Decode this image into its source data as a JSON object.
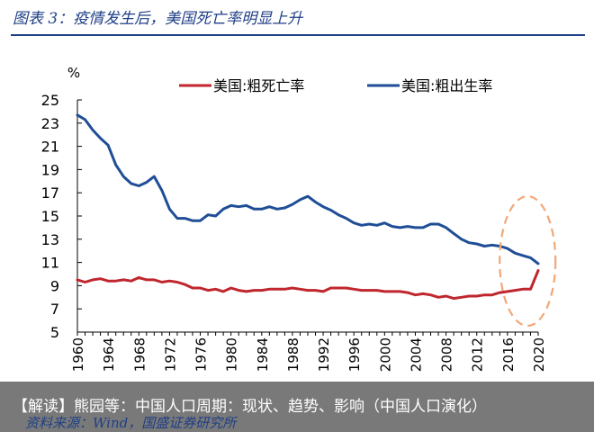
{
  "figure": {
    "title": "图表 3：疫情发生后，美国死亡率明显上升",
    "caption": "【解读】熊园等：中国人口周期：现状、趋势、影响（中国人口演化）",
    "source": "资料来源：Wind，国盛证券研究所"
  },
  "colors": {
    "accent": "#1f3f86",
    "death_series": "#c0262d",
    "birth_series": "#1f4e96",
    "highlight_ellipse": "#f0a878"
  },
  "chart_data": {
    "type": "line",
    "title": "",
    "xlabel": "",
    "ylabel": "%",
    "ylim": [
      5,
      25
    ],
    "yticks": [
      5,
      7,
      9,
      11,
      13,
      15,
      17,
      19,
      21,
      23,
      25
    ],
    "xlim": [
      1960,
      2020
    ],
    "xticks": [
      "1960",
      "1964",
      "1968",
      "1972",
      "1976",
      "1980",
      "1984",
      "1988",
      "1992",
      "1996",
      "2000",
      "2004",
      "2008",
      "2012",
      "2016",
      "2020"
    ],
    "legend": "top",
    "grid": false,
    "annotations": [
      {
        "kind": "dashed-ellipse",
        "around_years": [
          2017,
          2020
        ]
      }
    ],
    "x": [
      1960,
      1961,
      1962,
      1963,
      1964,
      1965,
      1966,
      1967,
      1968,
      1969,
      1970,
      1971,
      1972,
      1973,
      1974,
      1975,
      1976,
      1977,
      1978,
      1979,
      1980,
      1981,
      1982,
      1983,
      1984,
      1985,
      1986,
      1987,
      1988,
      1989,
      1990,
      1991,
      1992,
      1993,
      1994,
      1995,
      1996,
      1997,
      1998,
      1999,
      2000,
      2001,
      2002,
      2003,
      2004,
      2005,
      2006,
      2007,
      2008,
      2009,
      2010,
      2011,
      2012,
      2013,
      2014,
      2015,
      2016,
      2017,
      2018,
      2019,
      2020
    ],
    "series": [
      {
        "name": "美国:粗死亡率",
        "values": [
          9.5,
          9.3,
          9.5,
          9.6,
          9.4,
          9.4,
          9.5,
          9.4,
          9.7,
          9.5,
          9.5,
          9.3,
          9.4,
          9.3,
          9.1,
          8.8,
          8.8,
          8.6,
          8.7,
          8.5,
          8.8,
          8.6,
          8.5,
          8.6,
          8.6,
          8.7,
          8.7,
          8.7,
          8.8,
          8.7,
          8.6,
          8.6,
          8.5,
          8.8,
          8.8,
          8.8,
          8.7,
          8.6,
          8.6,
          8.6,
          8.5,
          8.5,
          8.5,
          8.4,
          8.2,
          8.3,
          8.2,
          8.0,
          8.1,
          7.9,
          8.0,
          8.1,
          8.1,
          8.2,
          8.2,
          8.4,
          8.5,
          8.6,
          8.7,
          8.7,
          10.3
        ]
      },
      {
        "name": "美国:粗出生率",
        "values": [
          23.7,
          23.3,
          22.4,
          21.7,
          21.1,
          19.4,
          18.4,
          17.8,
          17.6,
          17.9,
          18.4,
          17.2,
          15.6,
          14.8,
          14.8,
          14.6,
          14.6,
          15.1,
          15.0,
          15.6,
          15.9,
          15.8,
          15.9,
          15.6,
          15.6,
          15.8,
          15.6,
          15.7,
          16.0,
          16.4,
          16.7,
          16.2,
          15.8,
          15.5,
          15.1,
          14.8,
          14.4,
          14.2,
          14.3,
          14.2,
          14.4,
          14.1,
          14.0,
          14.1,
          14.0,
          14.0,
          14.3,
          14.3,
          14.0,
          13.5,
          13.0,
          12.7,
          12.6,
          12.4,
          12.5,
          12.4,
          12.2,
          11.8,
          11.6,
          11.4,
          10.9
        ]
      }
    ]
  }
}
